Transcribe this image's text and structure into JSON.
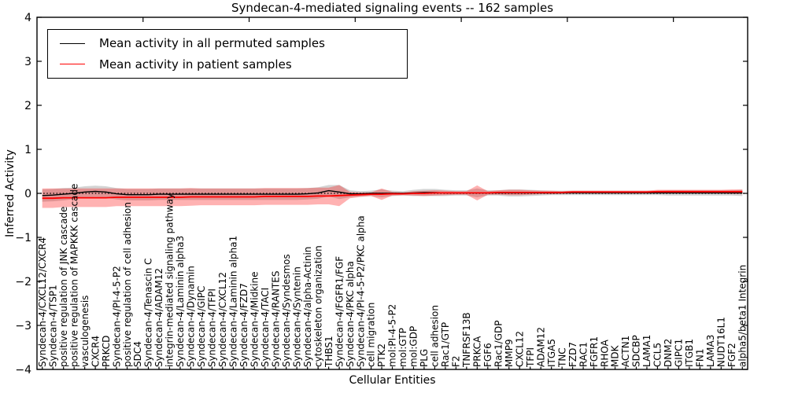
{
  "title": "Syndecan-4-mediated signaling events -- 162 samples",
  "legend": {
    "items": [
      {
        "label": "Mean activity in all permuted samples",
        "color": "#000000"
      },
      {
        "label": "Mean activity in patient samples",
        "color": "#ff0000"
      }
    ]
  },
  "colors": {
    "permuted_line": "#000000",
    "patient_line": "#ff0000",
    "permuted_band": "rgba(128,128,128,0.35)",
    "patient_band": "rgba(255,0,0,0.30)",
    "frame": "#000000"
  },
  "chart_data": {
    "type": "line",
    "title": "Syndecan-4-mediated signaling events -- 162 samples",
    "xlabel": "Cellular Entities",
    "ylabel": "Inferred Activity",
    "ylim": [
      -4,
      4
    ],
    "yticks": [
      4,
      3,
      2,
      1,
      0,
      -1,
      -2,
      -3,
      -4
    ],
    "x_major_tick_interval": 10,
    "zero_line": {
      "y": 0,
      "style": "dotted",
      "color": "#000000"
    },
    "legend_position": "upper left",
    "grid": false,
    "categories": [
      "Syndecan-4/CXCL12/CXCR4",
      "Syndecan-4/TSP1",
      "positive regulation of JNK cascade",
      "positive regulation of MAPKKK cascade",
      "vasculogenesis",
      "CXCR4",
      "PRKCD",
      "Syndecan-4/PI-4-5-P2",
      "positive regulation of cell adhesion",
      "SDC4",
      "Syndecan-4/Tenascin C",
      "Syndecan-4/ADAM12",
      "integrin-mediated signaling pathway",
      "Syndecan-4/Laminin alpha3",
      "Syndecan-4/Dynamin",
      "Syndecan-4/GIPC",
      "Syndecan-4/TFPI",
      "Syndecan-4/CXCL12",
      "Syndecan-4/Laminin alpha1",
      "Syndecan-4/FZD7",
      "Syndecan-4/Midkine",
      "Syndecan-4/TACI",
      "Syndecan-4/RANTES",
      "Syndecan-4/Syndesmos",
      "Syndecan-4/Syntenin",
      "Syndecan-4/alpha-Actinin",
      "cytoskeleton organization",
      "THBS1",
      "Syndecan-4/FGFR1/FGF",
      "Syndecan-4/PKC alpha",
      "Syndecan-4/PI-4-5-P2/PKC alpha",
      "cell migration",
      "PTK2",
      "mol:PI-4-5-P2",
      "mol:GTP",
      "mol:GDP",
      "PLG",
      "cell adhesion",
      "Rac1/GTP",
      "F2",
      "TNFRSF13B",
      "PRKCA",
      "FGF6",
      "Rac1/GDP",
      "MMP9",
      "CXCL12",
      "TFPI",
      "ADAM12",
      "ITGA5",
      "TNC",
      "FZD7",
      "RAC1",
      "FGFR1",
      "RHOA",
      "MDK",
      "ACTN1",
      "SDCBP",
      "LAMA1",
      "CCL5",
      "DNM2",
      "GIPC1",
      "ITGB1",
      "FN1",
      "LAMA3",
      "NUDT16L1",
      "FGF2",
      "alpha5/beta1 Integrin"
    ],
    "series": [
      {
        "name": "Mean activity in all permuted samples",
        "color": "#000000",
        "band_color": "rgba(128,128,128,0.35)",
        "values": [
          -0.05,
          -0.04,
          -0.02,
          0.0,
          0.03,
          0.045,
          0.03,
          -0.01,
          -0.03,
          -0.03,
          -0.03,
          -0.02,
          -0.02,
          -0.02,
          -0.02,
          -0.02,
          -0.02,
          -0.02,
          -0.02,
          -0.02,
          -0.02,
          -0.02,
          -0.02,
          -0.02,
          -0.02,
          -0.01,
          0.01,
          0.06,
          0.03,
          -0.01,
          -0.01,
          0.0,
          0.0,
          0.0,
          0.0,
          0.01,
          0.02,
          0.02,
          0.01,
          0.01,
          0.01,
          0.01,
          0.01,
          0.01,
          0.01,
          0.01,
          0.01,
          0.01,
          0.01,
          0.01,
          0.01,
          0.01,
          0.01,
          0.01,
          0.01,
          0.01,
          0.01,
          0.01,
          0.01,
          0.01,
          0.01,
          0.01,
          0.01,
          0.01,
          0.01,
          0.01,
          0.01
        ],
        "band_halfwidth": [
          0.14,
          0.14,
          0.14,
          0.13,
          0.13,
          0.13,
          0.13,
          0.13,
          0.13,
          0.13,
          0.13,
          0.13,
          0.13,
          0.13,
          0.13,
          0.13,
          0.13,
          0.13,
          0.13,
          0.13,
          0.13,
          0.13,
          0.13,
          0.13,
          0.13,
          0.13,
          0.13,
          0.13,
          0.16,
          0.08,
          0.06,
          0.06,
          0.09,
          0.06,
          0.05,
          0.07,
          0.08,
          0.08,
          0.07,
          0.06,
          0.06,
          0.1,
          0.06,
          0.06,
          0.08,
          0.08,
          0.07,
          0.06,
          0.05,
          0.05,
          0.05,
          0.05,
          0.05,
          0.05,
          0.05,
          0.05,
          0.05,
          0.05,
          0.05,
          0.06,
          0.06,
          0.06,
          0.06,
          0.06,
          0.06,
          0.06,
          0.07
        ]
      },
      {
        "name": "Mean activity in patient samples",
        "color": "#ff0000",
        "band_color": "rgba(255,0,0,0.30)",
        "values": [
          -0.11,
          -0.11,
          -0.1,
          -0.1,
          -0.1,
          -0.1,
          -0.1,
          -0.09,
          -0.09,
          -0.09,
          -0.09,
          -0.09,
          -0.09,
          -0.09,
          -0.08,
          -0.08,
          -0.08,
          -0.08,
          -0.08,
          -0.08,
          -0.08,
          -0.07,
          -0.07,
          -0.07,
          -0.07,
          -0.07,
          -0.06,
          -0.06,
          -0.05,
          -0.04,
          -0.03,
          -0.02,
          -0.02,
          -0.01,
          -0.01,
          0.0,
          0.0,
          0.01,
          0.01,
          0.01,
          0.01,
          0.01,
          0.01,
          0.02,
          0.02,
          0.02,
          0.02,
          0.02,
          0.02,
          0.02,
          0.03,
          0.03,
          0.03,
          0.03,
          0.03,
          0.03,
          0.03,
          0.03,
          0.04,
          0.04,
          0.04,
          0.04,
          0.04,
          0.04,
          0.04,
          0.04,
          0.04
        ],
        "band_halfwidth": [
          0.22,
          0.22,
          0.21,
          0.21,
          0.21,
          0.21,
          0.21,
          0.2,
          0.2,
          0.2,
          0.2,
          0.2,
          0.2,
          0.2,
          0.2,
          0.19,
          0.19,
          0.19,
          0.19,
          0.19,
          0.19,
          0.19,
          0.19,
          0.19,
          0.19,
          0.19,
          0.19,
          0.19,
          0.24,
          0.07,
          0.05,
          0.04,
          0.13,
          0.04,
          0.03,
          0.05,
          0.06,
          0.06,
          0.05,
          0.04,
          0.04,
          0.17,
          0.04,
          0.05,
          0.06,
          0.06,
          0.05,
          0.04,
          0.04,
          0.03,
          0.03,
          0.03,
          0.03,
          0.03,
          0.03,
          0.03,
          0.03,
          0.03,
          0.04,
          0.04,
          0.04,
          0.04,
          0.04,
          0.04,
          0.04,
          0.05,
          0.05
        ]
      }
    ]
  }
}
